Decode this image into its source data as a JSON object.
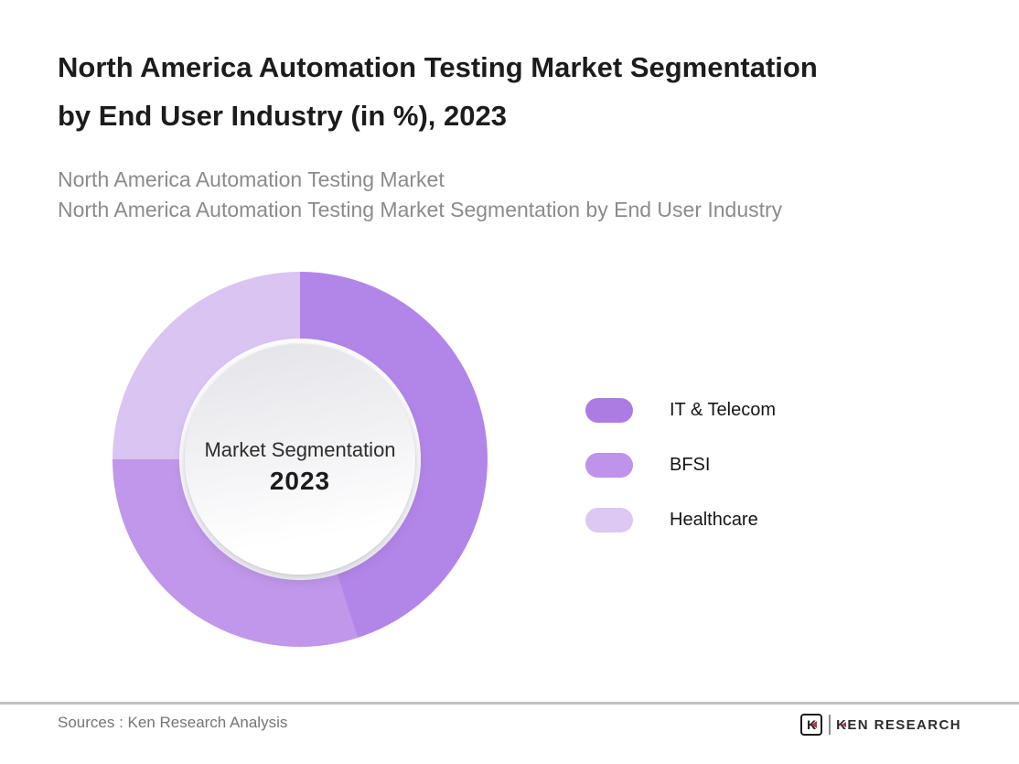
{
  "title": {
    "lines": [
      "North America Automation Testing Market Segmentation",
      "by End User Industry (in %), 2023"
    ]
  },
  "subtitle": {
    "lines": [
      "North America Automation Testing Market",
      "North America Automation Testing Market Segmentation by End User Industry"
    ]
  },
  "chart_data": {
    "type": "pie",
    "variant": "donut",
    "title": "North America Automation Testing Market Segmentation by End User Industry (in %), 2023",
    "center_label": "Market Segmentation",
    "center_year": "2023",
    "categories": [
      "IT & Telecom",
      "BFSI",
      "Healthcare"
    ],
    "values": [
      45,
      30,
      25
    ],
    "unit": "%",
    "colors": [
      "#b285e8",
      "#c097ea",
      "#dac4f2"
    ],
    "start_angle_deg": 0,
    "direction": "clockwise",
    "legend_position": "right",
    "data_labels_shown": false
  },
  "legend": {
    "items": [
      {
        "label": "IT & Telecom",
        "color": "#ac7ce3"
      },
      {
        "label": "BFSI",
        "color": "#bf93e9"
      },
      {
        "label": "Healthcare",
        "color": "#dcc8f3"
      }
    ]
  },
  "footer": {
    "sources_text": "Sources : Ken Research Analysis",
    "brand_name": "KEN RESEARCH",
    "brand_icon_letter": "K",
    "accent_color": "#ae3a40",
    "divider_color": "#c2c2c2"
  }
}
